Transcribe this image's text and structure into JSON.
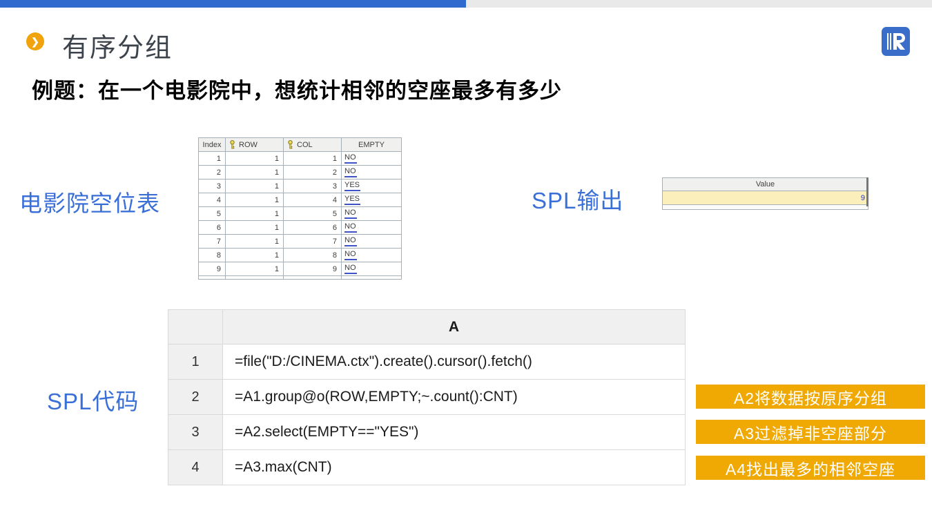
{
  "slide": {
    "title": "有序分组",
    "subtitle": "例题：在一个电影院中，想统计相邻的空座最多有多少"
  },
  "icons": {
    "title_chevron_glyph": "❯",
    "key_icon_name": "primary-key",
    "logo_name": "raqsoft-logo"
  },
  "labels": {
    "cinema_table": "电影院空位表",
    "spl_output": "SPL输出",
    "spl_code": "SPL代码"
  },
  "cinema_table": {
    "columns": [
      "Index",
      "ROW",
      "COL",
      "EMPTY"
    ],
    "key_columns": [
      "ROW",
      "COL"
    ],
    "rows": [
      {
        "index": "1",
        "row": "1",
        "col": "1",
        "empty": "NO"
      },
      {
        "index": "2",
        "row": "1",
        "col": "2",
        "empty": "NO"
      },
      {
        "index": "3",
        "row": "1",
        "col": "3",
        "empty": "YES"
      },
      {
        "index": "4",
        "row": "1",
        "col": "4",
        "empty": "YES"
      },
      {
        "index": "5",
        "row": "1",
        "col": "5",
        "empty": "NO"
      },
      {
        "index": "6",
        "row": "1",
        "col": "6",
        "empty": "NO"
      },
      {
        "index": "7",
        "row": "1",
        "col": "7",
        "empty": "NO"
      },
      {
        "index": "8",
        "row": "1",
        "col": "8",
        "empty": "NO"
      },
      {
        "index": "9",
        "row": "1",
        "col": "9",
        "empty": "NO"
      }
    ]
  },
  "output_table": {
    "header": "Value",
    "value": "9"
  },
  "code_table": {
    "header": "A",
    "rows": [
      {
        "num": "1",
        "code": "=file(\"D:/CINEMA.ctx\").create().cursor().fetch()"
      },
      {
        "num": "2",
        "code": "=A1.group@o(ROW,EMPTY;~.count():CNT)"
      },
      {
        "num": "3",
        "code": "=A2.select(EMPTY==\"YES\")"
      },
      {
        "num": "4",
        "code": "=A3.max(CNT)"
      }
    ]
  },
  "annotations": [
    "A2将数据按原序分组",
    "A3过滤掉非空座部分",
    "A4找出最多的相邻空座"
  ],
  "colors": {
    "topbar_blue": "#2f6bce",
    "topbar_gray": "#e9e9e9",
    "label_blue": "#3a6fd8",
    "title_dark": "#3d434b",
    "amber_icon": "#f0a30c",
    "annotation_orange": "#f0a802",
    "highlight_yellow": "#fbf0bb",
    "value_text_blue": "#2233cc",
    "logo_blue": "#3a6cc9"
  }
}
